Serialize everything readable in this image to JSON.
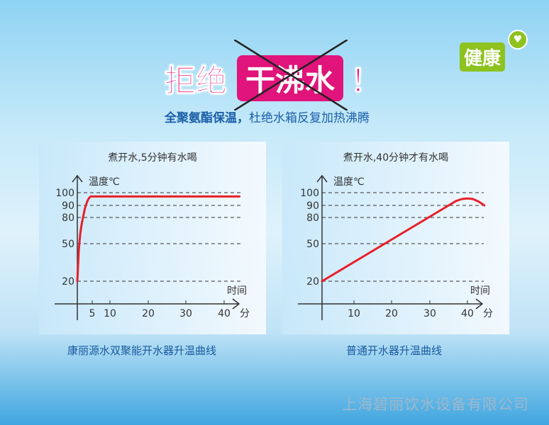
{
  "headline": {
    "part1": "拒绝",
    "crossed": "干沸水",
    "bang": "！"
  },
  "subline": {
    "bold": "全聚氨酯保温，",
    "normal": "杜绝水箱反复加热沸腾"
  },
  "badge": {
    "label": "健康",
    "icon": "heart-icon"
  },
  "company": "上海碧丽饮水设备有限公司",
  "colors": {
    "accent": "#e0147a",
    "curve": "#e8202a",
    "badge": "#8dc21f",
    "caption": "#1a5aa0"
  },
  "chart_data": [
    {
      "type": "line",
      "title": "煮开水,5分钟有水喝",
      "ylabel": "温度℃",
      "xlabel": "时间",
      "xunit": "分",
      "yticks": [
        20,
        50,
        80,
        90,
        100
      ],
      "xticks": [
        5,
        10,
        20,
        30,
        40
      ],
      "grid": "dashed-horizontal",
      "caption": "康丽源水双聚能开水器升温曲线",
      "series": [
        {
          "x": [
            0,
            0.5,
            1,
            1.5,
            2,
            2.5,
            3,
            3.5,
            4,
            4.5,
            5,
            44
          ],
          "y": [
            20,
            45,
            62,
            73,
            81,
            87,
            91,
            94,
            96,
            97,
            97,
            97
          ]
        }
      ]
    },
    {
      "type": "line",
      "title": "煮开水,40分钟才有水喝",
      "ylabel": "温度℃",
      "xlabel": "时间",
      "xunit": "分",
      "yticks": [
        20,
        50,
        80,
        90,
        100
      ],
      "xticks": [
        10,
        20,
        30,
        40
      ],
      "grid": "dashed-horizontal",
      "caption": "普通开水器升温曲线",
      "series": [
        {
          "x": [
            0,
            35,
            37,
            38.5,
            40,
            41.5,
            43,
            44.5
          ],
          "y": [
            20,
            90,
            93.5,
            95,
            95.5,
            95,
            93,
            90
          ]
        }
      ]
    }
  ]
}
